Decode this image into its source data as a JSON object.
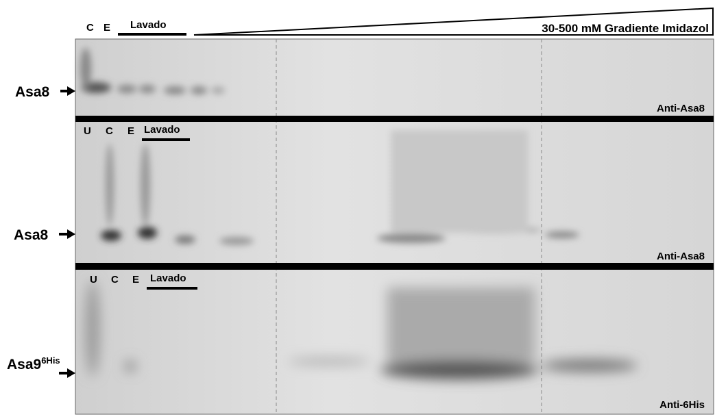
{
  "header": {
    "lanes": [
      "C",
      "E"
    ],
    "wash": "Lavado",
    "gradient": "30-500 mM Gradiente Imidazol"
  },
  "panels": [
    {
      "protein": "Asa8",
      "antibody": "Anti-Asa8",
      "lanes": [],
      "wash": null
    },
    {
      "protein": "Asa8",
      "antibody": "Anti-Asa8",
      "lanes": [
        "U",
        "C",
        "E"
      ],
      "wash": "Lavado"
    },
    {
      "protein": "Asa9",
      "protein_sup": "6His",
      "antibody": "Anti-6His",
      "lanes": [
        "U",
        "C",
        "E"
      ],
      "wash": "Lavado"
    }
  ]
}
